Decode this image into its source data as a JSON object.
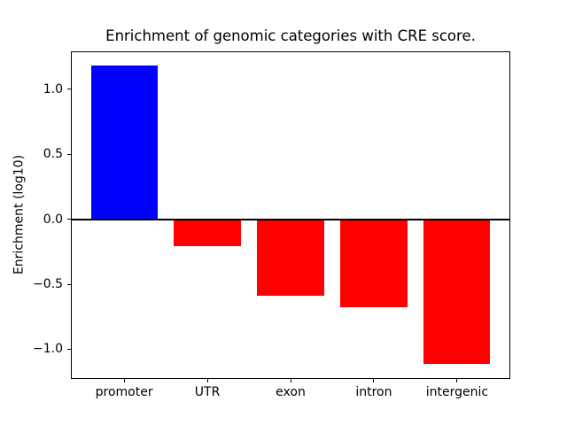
{
  "chart_data": {
    "type": "bar",
    "title": "Enrichment of genomic categories with CRE score.",
    "xlabel": "",
    "ylabel": "Enrichment (log10)",
    "categories": [
      "promoter",
      "UTR",
      "exon",
      "intron",
      "intergenic"
    ],
    "values": [
      1.18,
      -0.21,
      -0.59,
      -0.68,
      -1.11
    ],
    "bar_colors": [
      "#0000ff",
      "#ff0000",
      "#ff0000",
      "#ff0000",
      "#ff0000"
    ],
    "positive_color": "#0000ff",
    "negative_color": "#ff0000",
    "ylim": [
      -1.225,
      1.295
    ],
    "yticks": [
      1.0,
      0.5,
      0.0,
      -0.5,
      -1.0
    ],
    "ytick_labels": [
      "1.0",
      "0.5",
      "0.0",
      "−0.5",
      "−1.0"
    ],
    "zero_line": true,
    "grid": false,
    "legend": null,
    "background": "#ffffff"
  }
}
